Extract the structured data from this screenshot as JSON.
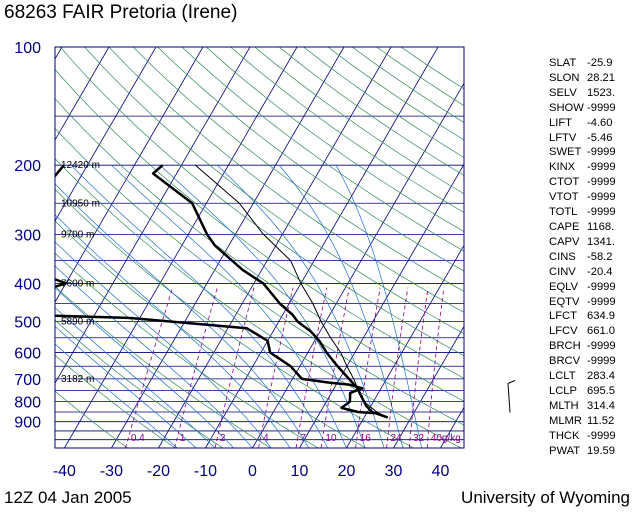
{
  "title": "68263 FAIR Pretoria (Irene)",
  "footer_left": "12Z 04 Jan 2005",
  "footer_right": "University of Wyoming",
  "colors": {
    "frame": "#000080",
    "isobar": "#000080",
    "isotherm": "#000080",
    "dry_adiabat": "#2e8b57",
    "moist_adiabat": "#1e6fd0",
    "mixing_ratio": "#8b008b",
    "temperature": "#000000",
    "dewpoint": "#000000",
    "parcel": "#000000",
    "axis_labels": "#000080",
    "mixing_labels": "#8b008b"
  },
  "chart_data": {
    "type": "line",
    "chart_kind": "skew-t log-p sounding",
    "title": "68263 FAIR Pretoria (Irene)",
    "x_ticks": [
      -40,
      -30,
      -20,
      -10,
      0,
      10,
      20,
      30,
      40
    ],
    "y_ticks": [
      100,
      200,
      300,
      400,
      500,
      600,
      700,
      800,
      900
    ],
    "xlim": [
      -42,
      45
    ],
    "ylim": [
      1050,
      100
    ],
    "y_scale": "log",
    "height_labels": [
      {
        "p": 200,
        "label": "12420 m"
      },
      {
        "p": 250,
        "label": "10950 m"
      },
      {
        "p": 300,
        "label": "9700 m"
      },
      {
        "p": 400,
        "label": "7600 m"
      },
      {
        "p": 500,
        "label": "5890 m"
      },
      {
        "p": 700,
        "label": "3182 m"
      }
    ],
    "mixing_ratio_labels": [
      "0.4",
      "1",
      "2",
      "4",
      "7",
      "10",
      "16",
      "24",
      "32",
      "40g/kg"
    ],
    "mixing_ratio_values": [
      0.4,
      1,
      2,
      4,
      7,
      10,
      16,
      24,
      32,
      40
    ],
    "series": [
      {
        "name": "Temperature",
        "points": [
          [
            200,
            -54
          ],
          [
            210,
            -55
          ],
          [
            250,
            -43
          ],
          [
            300,
            -36
          ],
          [
            320,
            -33
          ],
          [
            370,
            -24
          ],
          [
            400,
            -18
          ],
          [
            450,
            -12
          ],
          [
            480,
            -8
          ],
          [
            500,
            -6
          ],
          [
            530,
            -2
          ],
          [
            560,
            1
          ],
          [
            600,
            4
          ],
          [
            650,
            8
          ],
          [
            700,
            12
          ],
          [
            740,
            15
          ],
          [
            760,
            16
          ],
          [
            780,
            17
          ],
          [
            820,
            19
          ],
          [
            850,
            21
          ],
          [
            878,
            25
          ]
        ]
      },
      {
        "name": "Dewpoint",
        "points": [
          [
            200,
            -75
          ],
          [
            250,
            -77
          ],
          [
            300,
            -80
          ],
          [
            380,
            -66
          ],
          [
            400,
            -60
          ],
          [
            430,
            -67
          ],
          [
            480,
            -67
          ],
          [
            490,
            -42
          ],
          [
            520,
            -16
          ],
          [
            560,
            -10
          ],
          [
            600,
            -8
          ],
          [
            650,
            -2
          ],
          [
            700,
            2
          ],
          [
            715,
            8
          ],
          [
            725,
            13
          ],
          [
            740,
            16
          ],
          [
            760,
            14
          ],
          [
            800,
            15
          ],
          [
            830,
            14
          ],
          [
            850,
            18
          ],
          [
            856,
            22
          ]
        ]
      },
      {
        "name": "Parcel",
        "points": [
          [
            200,
            -47
          ],
          [
            250,
            -33
          ],
          [
            300,
            -24
          ],
          [
            350,
            -15
          ],
          [
            400,
            -10
          ],
          [
            450,
            -5
          ],
          [
            500,
            -1
          ],
          [
            550,
            3
          ],
          [
            600,
            7
          ],
          [
            650,
            10
          ],
          [
            700,
            13
          ],
          [
            750,
            15.5
          ],
          [
            800,
            18
          ],
          [
            850,
            22
          ],
          [
            878,
            25
          ]
        ]
      }
    ],
    "wind_barbs": [
      {
        "p": 790,
        "speed_kt": 5,
        "dir_deg": 350
      }
    ]
  },
  "indices": [
    {
      "name": "SLAT",
      "value": "-25.9"
    },
    {
      "name": "SLON",
      "value": "28.21"
    },
    {
      "name": "SELV",
      "value": "1523."
    },
    {
      "name": "SHOW",
      "value": "-9999"
    },
    {
      "name": "LIFT",
      "value": "-4.60"
    },
    {
      "name": "LFTV",
      "value": "-5.46"
    },
    {
      "name": "SWET",
      "value": "-9999"
    },
    {
      "name": "KINX",
      "value": "-9999"
    },
    {
      "name": "CTOT",
      "value": "-9999"
    },
    {
      "name": "VTOT",
      "value": "-9999"
    },
    {
      "name": "TOTL",
      "value": "-9999"
    },
    {
      "name": "CAPE",
      "value": "1168."
    },
    {
      "name": "CAPV",
      "value": "1341."
    },
    {
      "name": "CINS",
      "value": "-58.2"
    },
    {
      "name": "CINV",
      "value": "-20.4"
    },
    {
      "name": "EQLV",
      "value": "-9999"
    },
    {
      "name": "EQTV",
      "value": "-9999"
    },
    {
      "name": "LFCT",
      "value": "634.9"
    },
    {
      "name": "LFCV",
      "value": "661.0"
    },
    {
      "name": "BRCH",
      "value": "-9999"
    },
    {
      "name": "BRCV",
      "value": "-9999"
    },
    {
      "name": "LCLT",
      "value": "283.4"
    },
    {
      "name": "LCLP",
      "value": "695.5"
    },
    {
      "name": "MLTH",
      "value": "314.4"
    },
    {
      "name": "MLMR",
      "value": "11.52"
    },
    {
      "name": "THCK",
      "value": "-9999"
    },
    {
      "name": "PWAT",
      "value": "19.59"
    }
  ]
}
